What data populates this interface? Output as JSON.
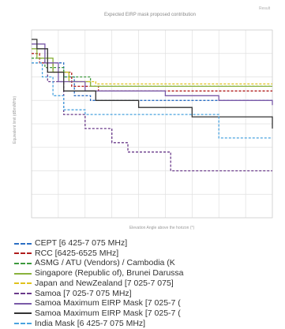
{
  "chart_data": {
    "type": "line",
    "title": "Expected EIRP mask proposed contribution",
    "xlabel": "Elevation Angle above the horizon (°)",
    "ylabel": "Equivalent limit (dBm/MHz)",
    "xlim": [
      0,
      90
    ],
    "ylim": [
      0,
      40
    ],
    "grid": true,
    "legend_position": "bottom",
    "legend_note": "Result",
    "y_ticks": [
      "",
      "",
      "",
      "",
      "",
      "",
      "",
      ""
    ],
    "series": [
      {
        "name": "CEPT [6 425-7 075 MHz]",
        "color": "#2c6fc4",
        "dash": "dashed",
        "x": [
          0,
          8,
          12,
          16,
          22,
          90
        ],
        "y": [
          33,
          33,
          30,
          26,
          25,
          25
        ]
      },
      {
        "name": "RCC [6425-6525 MHz]",
        "color": "#b01c1c",
        "dash": "dashed",
        "x": [
          0,
          3,
          8,
          15,
          25,
          90
        ],
        "y": [
          35,
          33,
          31,
          28,
          27,
          27
        ]
      },
      {
        "name": "ASMG / ATU (Vendors) / Cambodia (K",
        "color": "#3e9a3e",
        "dash": "dashed",
        "x": [
          0,
          5,
          12,
          22,
          90
        ],
        "y": [
          34,
          32,
          30,
          28,
          28
        ]
      },
      {
        "name": "Singapore (Republic of), Brunei Darussa",
        "color": "#8ab23c",
        "dash": "solid",
        "x": [
          0,
          2,
          8,
          14,
          22,
          90
        ],
        "y": [
          36,
          34,
          31,
          29,
          28,
          28
        ]
      },
      {
        "name": "Japan and  NewZealand [7 025-7 075]",
        "color": "#e0c21c",
        "dash": "dashed",
        "x": [
          0,
          6,
          14,
          24,
          90
        ],
        "y": [
          33,
          31,
          29,
          28.5,
          28.5
        ]
      },
      {
        "name": "Samoa [7 025-7 075 MHz]",
        "color": "#6a3a8a",
        "dash": "dashed",
        "x": [
          0,
          6,
          12,
          20,
          30,
          36,
          48,
          52,
          60,
          90
        ],
        "y": [
          33,
          29,
          22,
          19,
          16,
          14,
          14,
          10,
          10,
          10
        ]
      },
      {
        "name": "Samoa Maximum EIRP Mask [7 025-7 (",
        "color": "#7a5aa8",
        "dash": "solid",
        "x": [
          0,
          5,
          10,
          20,
          35,
          50,
          70,
          90
        ],
        "y": [
          37,
          33,
          29,
          27,
          27,
          26,
          25,
          24
        ]
      },
      {
        "name": "Samoa Maximum EIRP Mask [7 025-7 (",
        "color": "#333333",
        "dash": "solid",
        "x": [
          0,
          2,
          6,
          12,
          24,
          40,
          60,
          90
        ],
        "y": [
          38,
          36,
          31,
          27,
          25,
          23.5,
          21.5,
          19
        ]
      },
      {
        "name": "India Mask [6 425-7 075 MHz]",
        "color": "#4aa3df",
        "dash": "dashed",
        "x": [
          0,
          4,
          8,
          12,
          20,
          40,
          65,
          70,
          90
        ],
        "y": [
          33,
          30,
          26,
          23,
          22,
          22,
          22,
          17,
          17
        ]
      }
    ]
  }
}
